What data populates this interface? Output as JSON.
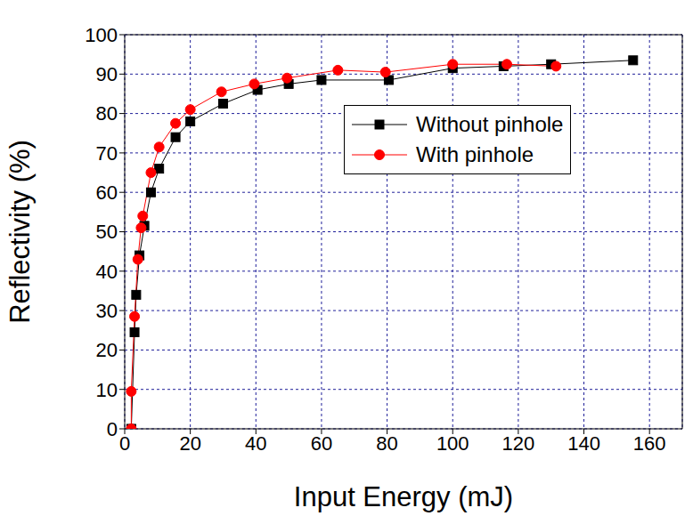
{
  "chart_data": {
    "type": "line",
    "x_label": "Input Energy (mJ)",
    "y_label": "Reflectivity (%)",
    "xlim": [
      0,
      170
    ],
    "xticks": [
      0,
      20,
      40,
      60,
      80,
      100,
      120,
      140,
      160
    ],
    "ylim": [
      0,
      100
    ],
    "yticks": [
      0,
      10,
      20,
      30,
      40,
      50,
      60,
      70,
      80,
      90,
      100
    ],
    "grid": true,
    "legend": "upper right",
    "series": [
      {
        "name": "Without pinhole",
        "color": "#000000",
        "marker": "square",
        "line_style": "solid",
        "x": [
          2,
          3,
          3.5,
          4.5,
          6,
          8,
          10.5,
          15.5,
          20,
          30,
          40.5,
          50,
          60,
          80.5,
          100,
          115.5,
          130,
          155
        ],
        "values": [
          0,
          24.5,
          34,
          44,
          51.5,
          60,
          66,
          74,
          78,
          82.5,
          86,
          87.5,
          88.5,
          88.5,
          91.5,
          92,
          92.5,
          93.5
        ]
      },
      {
        "name": "With pinhole",
        "color": "#ff0000",
        "marker": "circle",
        "line_style": "solid",
        "x": [
          2,
          2,
          3,
          4,
          5,
          5.5,
          8,
          10.5,
          15.5,
          20,
          29.5,
          39.5,
          49.5,
          65,
          79.5,
          100,
          116.5,
          131.5
        ],
        "values": [
          0,
          9.5,
          28.5,
          43,
          51,
          54,
          65,
          71.5,
          77.5,
          81,
          85.5,
          87.5,
          89,
          91,
          90.5,
          92.5,
          92.5,
          92
        ]
      }
    ]
  }
}
